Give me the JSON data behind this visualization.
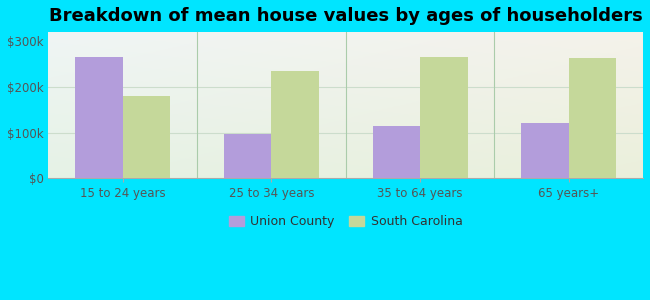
{
  "title": "Breakdown of mean house values by ages of householders",
  "categories": [
    "15 to 24 years",
    "25 to 34 years",
    "35 to 64 years",
    "65 years+"
  ],
  "union_county": [
    265000,
    97000,
    115000,
    120000
  ],
  "south_carolina": [
    180000,
    235000,
    265000,
    263000
  ],
  "bar_color_union": "#b39ddb",
  "bar_color_sc": "#c5d89a",
  "bg_color_topleft": "#e0f0f0",
  "bg_color_bottomleft": "#d4edda",
  "outer_background": "#00e5ff",
  "ylim": [
    0,
    320000
  ],
  "yticks": [
    0,
    100000,
    200000,
    300000
  ],
  "ytick_labels": [
    "$0",
    "$100k",
    "$200k",
    "$300k"
  ],
  "legend_union": "Union County",
  "legend_sc": "South Carolina",
  "title_fontsize": 13,
  "bar_width": 0.32,
  "separator_color": "#aaccaa",
  "grid_color": "#ccddcc"
}
